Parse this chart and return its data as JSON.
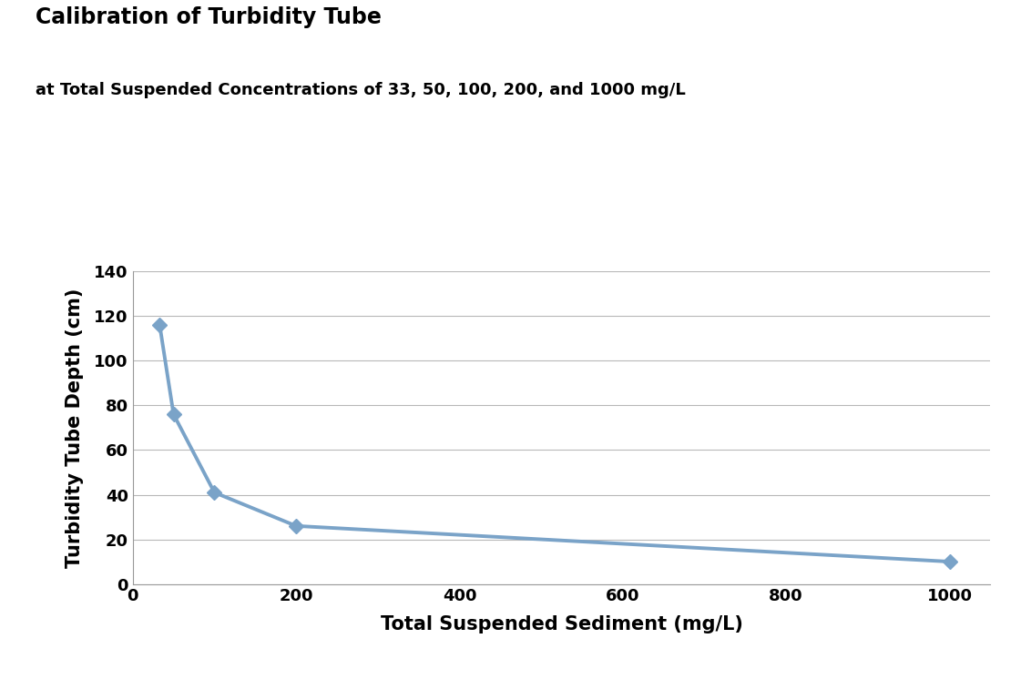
{
  "title": "Calibration of Turbidity Tube",
  "subtitle": "at Total Suspended Concentrations of 33, 50, 100, 200, and 1000 mg/L",
  "xlabel": "Total Suspended Sediment (mg/L)",
  "ylabel": "Turbidity Tube Depth (cm)",
  "x_data": [
    33,
    50,
    100,
    200,
    1000
  ],
  "y_data": [
    116,
    76,
    41,
    26,
    10
  ],
  "xlim": [
    0,
    1050
  ],
  "ylim": [
    0,
    140
  ],
  "xticks": [
    0,
    200,
    400,
    600,
    800,
    1000
  ],
  "yticks": [
    0,
    20,
    40,
    60,
    80,
    100,
    120,
    140
  ],
  "line_color": "#7aa3c8",
  "marker_color": "#7aa3c8",
  "background_color": "#ffffff",
  "grid_color": "#b8b8b8",
  "title_fontsize": 17,
  "subtitle_fontsize": 13,
  "axis_label_fontsize": 15,
  "tick_fontsize": 13
}
